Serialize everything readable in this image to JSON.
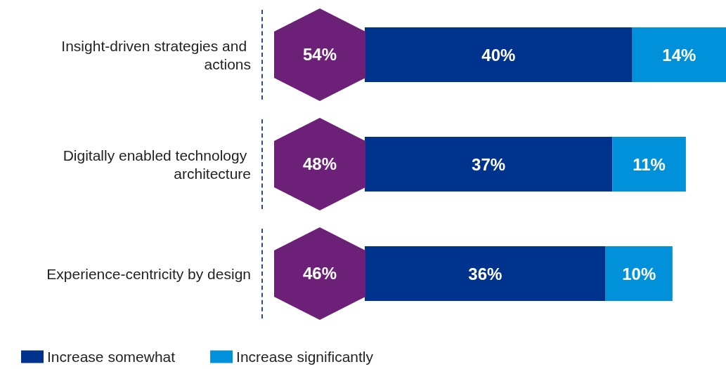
{
  "chart_data": {
    "type": "bar",
    "orientation": "horizontal",
    "stacked": true,
    "categories": [
      "Insight-driven strategies and actions",
      "Digitally enabled technology architecture",
      "Experience-centricity by design"
    ],
    "series": [
      {
        "name": "Increase somewhat",
        "color": "#00338d",
        "values": [
          40,
          37,
          36
        ],
        "value_labels": [
          "40%",
          "37%",
          "36%"
        ]
      },
      {
        "name": "Increase significantly",
        "color": "#0091da",
        "values": [
          14,
          11,
          10
        ],
        "value_labels": [
          "14%",
          "11%",
          "10%"
        ]
      }
    ],
    "tick_labels": "y",
    "totals": [
      "54%",
      "48%",
      "46%"
    ],
    "legend": "bottom left"
  }
}
